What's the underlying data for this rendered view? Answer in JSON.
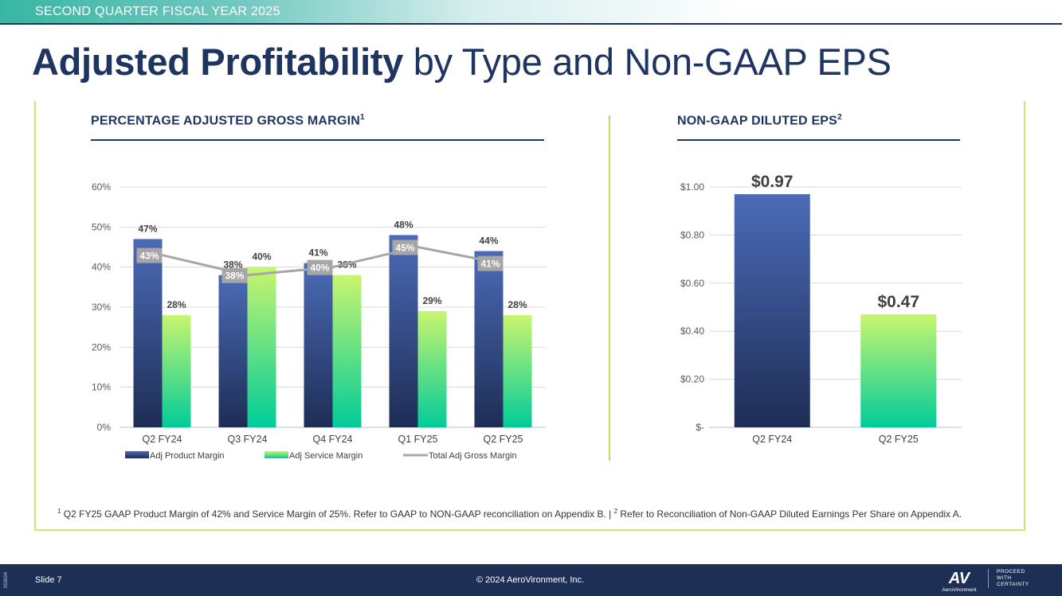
{
  "header": {
    "banner": "SECOND QUARTER FISCAL YEAR 2025",
    "title_bold": "Adjusted Profitability",
    "title_rest": " by Type and Non-GAAP EPS"
  },
  "left_section": {
    "title": "PERCENTAGE ADJUSTED GROSS MARGIN",
    "sup": "1"
  },
  "right_section": {
    "title": "NON-GAAP DILUTED EPS",
    "sup": "2"
  },
  "colors": {
    "product_top": "#4b6bb7",
    "product_bottom": "#1e2d55",
    "service_top": "#c9f56f",
    "service_bottom": "#00cc99",
    "total_line": "#a6a6a6",
    "navy": "#1e3461"
  },
  "chart_data": [
    {
      "type": "bar",
      "title": "PERCENTAGE ADJUSTED GROSS MARGIN",
      "categories": [
        "Q2 FY24",
        "Q3 FY24",
        "Q4 FY24",
        "Q1 FY25",
        "Q2 FY25"
      ],
      "ylim": [
        0,
        60
      ],
      "yticks": [
        0,
        10,
        20,
        30,
        40,
        50,
        60
      ],
      "ytick_labels": [
        "0%",
        "10%",
        "20%",
        "30%",
        "40%",
        "50%",
        "60%"
      ],
      "grid": true,
      "legend_position": "bottom",
      "series": [
        {
          "name": "Adj Product Margin",
          "kind": "bar",
          "values": [
            47,
            38,
            41,
            48,
            44
          ],
          "labels": [
            "47%",
            "38%",
            "41%",
            "48%",
            "44%"
          ]
        },
        {
          "name": "Adj Service Margin",
          "kind": "bar",
          "values": [
            28,
            40,
            38,
            29,
            28
          ],
          "labels": [
            "28%",
            "40%",
            "38%",
            "29%",
            "28%"
          ]
        },
        {
          "name": "Total Adj Gross Margin",
          "kind": "line",
          "values": [
            43,
            38,
            40,
            45,
            41
          ],
          "labels": [
            "43%",
            "38%",
            "40%",
            "45%",
            "41%"
          ]
        }
      ]
    },
    {
      "type": "bar",
      "title": "NON-GAAP DILUTED EPS",
      "categories": [
        "Q2 FY24",
        "Q2 FY25"
      ],
      "values": [
        0.97,
        0.47
      ],
      "value_labels": [
        "$0.97",
        "$0.47"
      ],
      "ylim": [
        0,
        1.0
      ],
      "yticks": [
        0,
        0.2,
        0.4,
        0.6,
        0.8,
        1.0
      ],
      "ytick_labels": [
        "$-",
        "$0.20",
        "$0.40",
        "$0.60",
        "$0.80",
        "$1.00"
      ],
      "grid": true
    }
  ],
  "footnote": {
    "sup1": "1",
    "text1": " Q2 FY25 GAAP Product Margin of 42% and Service Margin of 25%. Refer to GAAP to NON-GAAP reconciliation on Appendix B.  |  ",
    "sup2": "2",
    "text2": " Refer to Reconciliation of Non-GAAP Diluted Earnings Per Share on Appendix A."
  },
  "footer": {
    "slide": "Slide 7",
    "copyright": "© 2024 AeroVironment, Inc.",
    "side_code": "003024",
    "logo_mark": "AV",
    "logo_name": "AeroVironment",
    "tagline": [
      "PROCEED",
      "WITH",
      "CERTAINTY"
    ]
  }
}
